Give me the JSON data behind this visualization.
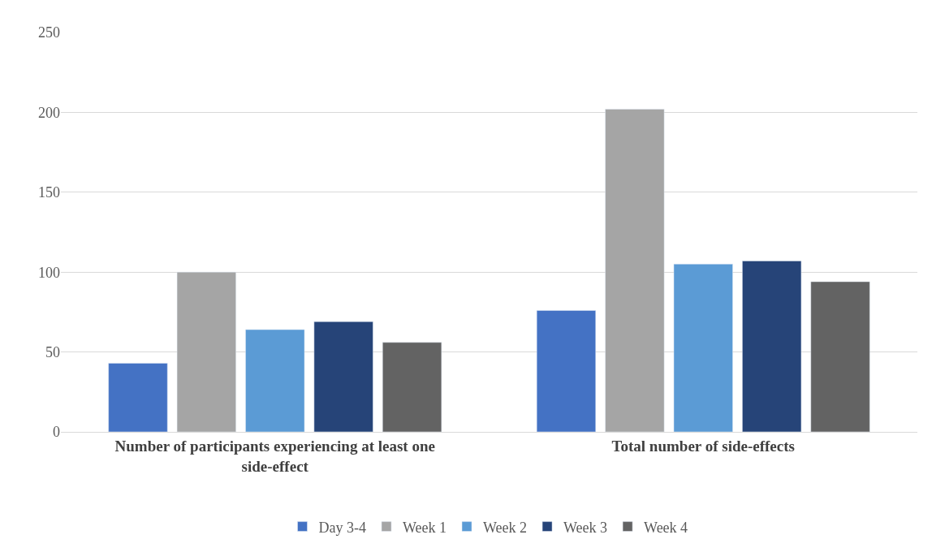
{
  "chart_data": {
    "type": "bar",
    "categories": [
      "Number of participants experiencing at least one side-effect",
      "Total number of side-effects"
    ],
    "series": [
      {
        "name": "Day 3-4",
        "color": "#4472c4",
        "values": [
          43,
          76
        ]
      },
      {
        "name": "Week 1",
        "color": "#a5a5a5",
        "values": [
          100,
          202
        ]
      },
      {
        "name": "Week 2",
        "color": "#5b9bd5",
        "values": [
          64,
          105
        ]
      },
      {
        "name": "Week 3",
        "color": "#264478",
        "values": [
          69,
          107
        ]
      },
      {
        "name": "Week 4",
        "color": "#636363",
        "values": [
          56,
          94
        ]
      }
    ],
    "ylim": [
      0,
      250
    ],
    "yticks": [
      0,
      50,
      100,
      150,
      200,
      250
    ],
    "grid": "y",
    "legend": "bottom"
  }
}
